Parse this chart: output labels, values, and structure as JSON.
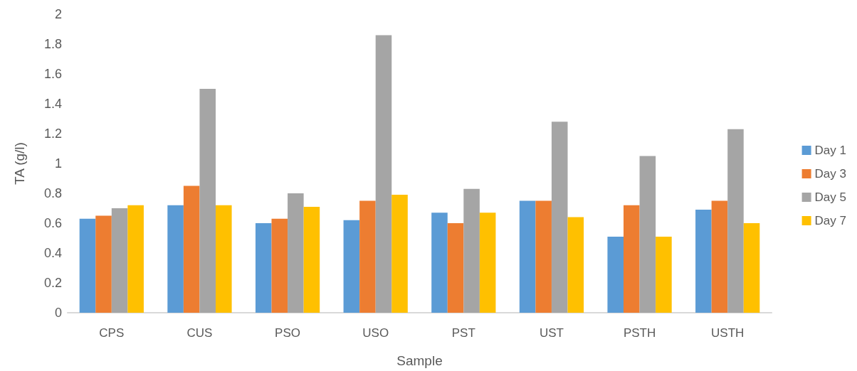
{
  "chart_data": {
    "type": "bar",
    "xlabel": "Sample",
    "ylabel": "TA (g/l)",
    "categories": [
      "CPS",
      "CUS",
      "PSO",
      "USO",
      "PST",
      "UST",
      "PSTH",
      "USTH"
    ],
    "series": [
      {
        "name": "Day 1",
        "color": "#5b9bd5",
        "values": [
          0.63,
          0.72,
          0.6,
          0.62,
          0.67,
          0.75,
          0.51,
          0.69
        ]
      },
      {
        "name": "Day 3",
        "color": "#ed7d31",
        "values": [
          0.65,
          0.85,
          0.63,
          0.75,
          0.6,
          0.75,
          0.72,
          0.75
        ]
      },
      {
        "name": "Day 5",
        "color": "#a5a5a5",
        "values": [
          0.7,
          1.5,
          0.8,
          1.86,
          0.83,
          1.28,
          1.05,
          1.23
        ]
      },
      {
        "name": "Day 7",
        "color": "#ffc000",
        "values": [
          0.72,
          0.72,
          0.71,
          0.79,
          0.67,
          0.64,
          0.51,
          0.6
        ]
      }
    ],
    "ylim": [
      0,
      2
    ],
    "yticks": [
      0,
      0.2,
      0.4,
      0.6,
      0.8,
      1,
      1.2,
      1.4,
      1.6,
      1.8,
      2
    ],
    "grid": false,
    "legend": "right"
  }
}
